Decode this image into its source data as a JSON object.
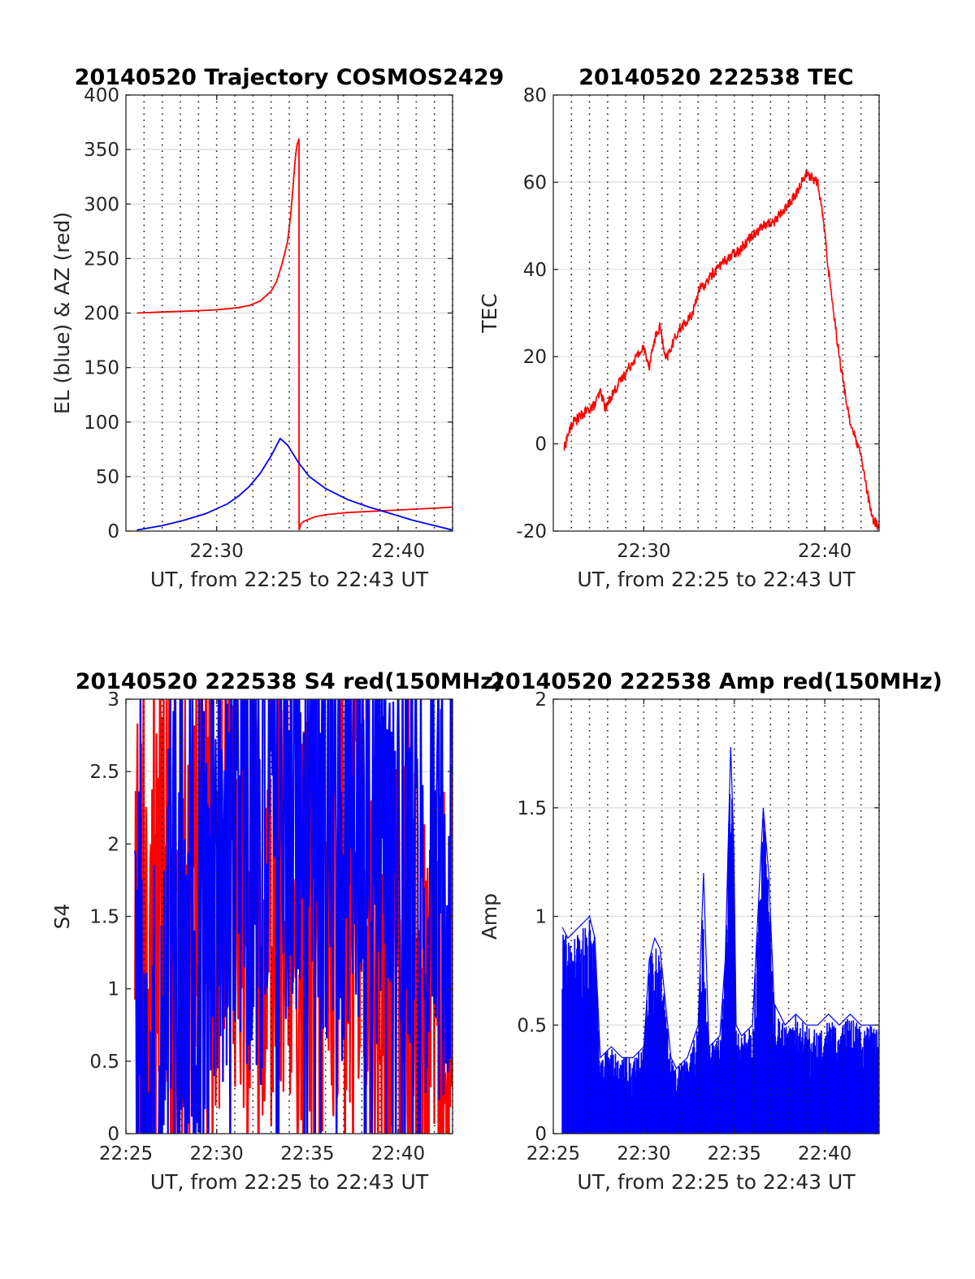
{
  "chart_data": [
    {
      "id": "p1",
      "type": "line",
      "title": "20140520 Trajectory COSMOS2429",
      "xlabel": "UT, from 22:25 to 22:43 UT",
      "ylabel": "EL (blue) & AZ (red)",
      "xlim": [
        22.41667,
        22.71667
      ],
      "ylim": [
        0,
        400
      ],
      "yticks": [
        0,
        50,
        100,
        150,
        200,
        250,
        300,
        350,
        400
      ],
      "xticks": [
        {
          "value": 22.5,
          "label": "22:30"
        },
        {
          "value": 22.66667,
          "label": "22:40"
        }
      ],
      "grid_x_step_minutes": 1,
      "colors": {
        "az": "#ff0000",
        "el": "#0000ff"
      },
      "series": [
        {
          "key": "az",
          "color": "#ff0000",
          "x": [
            22.42667,
            22.45,
            22.48,
            22.5,
            22.52,
            22.53,
            22.54,
            22.55,
            22.555,
            22.56,
            22.565,
            22.568,
            22.5705,
            22.5725,
            22.574,
            22.575,
            22.5753,
            22.5756,
            22.5756,
            22.5757,
            22.5758,
            22.5765,
            22.5775,
            22.58,
            22.585,
            22.59,
            22.6,
            22.61,
            22.62,
            22.64,
            22.66,
            22.68,
            22.7,
            22.71667
          ],
          "y": [
            200,
            201,
            202,
            203,
            205,
            207,
            211,
            220,
            229,
            245,
            265,
            290,
            320,
            345,
            355,
            358,
            359,
            360,
            50,
            2,
            1,
            4,
            7,
            9,
            11,
            13,
            15,
            16,
            17,
            18,
            19,
            20,
            21,
            22
          ]
        },
        {
          "key": "el",
          "color": "#0000ff",
          "x": [
            22.42667,
            22.45,
            22.47,
            22.49,
            22.51,
            22.52,
            22.53,
            22.54,
            22.55,
            22.5583,
            22.565,
            22.575,
            22.585,
            22.6,
            22.62,
            22.64,
            22.66,
            22.68,
            22.7,
            22.71667
          ],
          "y": [
            1,
            5,
            10,
            16,
            25,
            32,
            41,
            53,
            69,
            85,
            79,
            63,
            50,
            39,
            29,
            22,
            16,
            10,
            5,
            1
          ]
        }
      ]
    },
    {
      "id": "p2",
      "type": "line",
      "title": "20140520 222538 TEC",
      "xlabel": "UT, from 22:25 to 22:43 UT",
      "ylabel": "TEC",
      "xlim": [
        22.41667,
        22.71667
      ],
      "ylim": [
        -20,
        80
      ],
      "yticks": [
        -20,
        0,
        20,
        40,
        60,
        80
      ],
      "xticks": [
        {
          "value": 22.5,
          "label": "22:30"
        },
        {
          "value": 22.66667,
          "label": "22:40"
        }
      ],
      "grid_x_step_minutes": 1,
      "noise": 1.2,
      "series": [
        {
          "key": "tec",
          "color": "#ff0000",
          "x": [
            22.42667,
            22.43,
            22.435,
            22.44,
            22.45,
            22.455,
            22.46,
            22.465,
            22.47,
            22.48,
            22.49,
            22.5,
            22.505,
            22.51,
            22.515,
            22.52,
            22.525,
            22.53,
            22.535,
            22.54,
            22.545,
            22.55,
            22.555,
            22.56,
            22.57,
            22.58,
            22.59,
            22.6,
            22.61,
            22.62,
            22.63,
            22.64,
            22.645,
            22.65,
            22.655,
            22.66,
            22.665,
            22.67,
            22.675,
            22.68,
            22.685,
            22.69,
            22.695,
            22.7,
            22.705,
            22.71,
            22.71667
          ],
          "y": [
            -1,
            2,
            5,
            6,
            8,
            9,
            12,
            8,
            11,
            15,
            19,
            22,
            18,
            24,
            27,
            19,
            22,
            25,
            27,
            28,
            30,
            35,
            36,
            38,
            41,
            43,
            45,
            48,
            50,
            51,
            54,
            57,
            60,
            62,
            61,
            60,
            52,
            40,
            30,
            20,
            12,
            5,
            1,
            -3,
            -10,
            -17,
            -19
          ]
        }
      ]
    },
    {
      "id": "p3",
      "type": "line",
      "title": "20140520 222538 S4 red(150MHz)",
      "xlabel": "UT, from 22:25 to 22:43 UT",
      "ylabel": "S4",
      "xlim": [
        22.41667,
        22.71667
      ],
      "ylim": [
        0,
        3
      ],
      "yticks": [
        0,
        0.5,
        1,
        1.5,
        2,
        2.5,
        3
      ],
      "xticks": [
        {
          "value": 22.41667,
          "label": "22:25"
        },
        {
          "value": 22.5,
          "label": "22:30"
        },
        {
          "value": 22.58333,
          "label": "22:35"
        },
        {
          "value": 22.66667,
          "label": "22:40"
        }
      ],
      "grid_x_step_minutes": 1,
      "noise": 1.6,
      "series": [
        {
          "key": "s4_red",
          "color": "#ff0000",
          "x": [
            22.425,
            22.44,
            22.45,
            22.47,
            22.49,
            22.51,
            22.53,
            22.55,
            22.565,
            22.58,
            22.6,
            22.61,
            22.62,
            22.63,
            22.64,
            22.645,
            22.65,
            22.66,
            22.67,
            22.68,
            22.69,
            22.7,
            22.71,
            22.71667
          ],
          "y": [
            1.5,
            1.5,
            1.5,
            1.6,
            1.6,
            1.6,
            1.5,
            1.5,
            1.5,
            1.5,
            1.6,
            1.6,
            1.6,
            1.5,
            1.2,
            1.1,
            1.0,
            0.9,
            1.0,
            1.1,
            0.9,
            1.0,
            1.1,
            1.0
          ]
        },
        {
          "key": "s4_blue",
          "color": "#0000ff",
          "x": [
            22.425,
            22.43,
            22.435,
            22.44,
            22.445,
            22.45,
            22.455,
            22.46,
            22.465,
            22.47,
            22.48,
            22.49,
            22.5,
            22.51,
            22.52,
            22.53,
            22.54,
            22.55,
            22.56,
            22.57,
            22.58,
            22.59,
            22.6,
            22.61,
            22.62,
            22.63,
            22.64,
            22.65,
            22.66,
            22.67,
            22.68,
            22.69,
            22.7,
            22.71,
            22.71667
          ],
          "y": [
            0.8,
            0.75,
            0.85,
            0.7,
            0.8,
            1.2,
            1.5,
            1.8,
            1.4,
            1.2,
            1.5,
            1.6,
            1.8,
            1.9,
            2.2,
            2.0,
            1.9,
            2.0,
            2.4,
            2.2,
            1.9,
            2.1,
            2.2,
            2.0,
            2.1,
            2.3,
            2.2,
            2.0,
            1.9,
            1.8,
            2.0,
            1.9,
            1.7,
            1.8,
            1.9
          ]
        }
      ]
    },
    {
      "id": "p4",
      "type": "line",
      "title": "20140520 222538 Amp red(150MHz)",
      "xlabel": "UT, from 22:25 to 22:43 UT",
      "ylabel": "Amp",
      "xlim": [
        22.41667,
        22.71667
      ],
      "ylim": [
        0,
        2
      ],
      "yticks": [
        0,
        0.5,
        1,
        1.5,
        2
      ],
      "xticks": [
        {
          "value": 22.41667,
          "label": "22:25"
        },
        {
          "value": 22.5,
          "label": "22:30"
        },
        {
          "value": 22.58333,
          "label": "22:35"
        },
        {
          "value": 22.66667,
          "label": "22:40"
        }
      ],
      "grid_x_step_minutes": 1,
      "series": [
        {
          "key": "amp_envelope",
          "color": "#0000ff",
          "x": [
            22.425,
            22.43,
            22.44,
            22.45,
            22.455,
            22.46,
            22.47,
            22.48,
            22.49,
            22.5,
            22.505,
            22.51,
            22.515,
            22.52,
            22.525,
            22.53,
            22.54,
            22.55,
            22.555,
            22.56,
            22.57,
            22.575,
            22.58,
            22.583,
            22.585,
            22.59,
            22.6,
            22.605,
            22.61,
            22.615,
            22.62,
            22.63,
            22.64,
            22.65,
            22.66,
            22.67,
            22.68,
            22.69,
            22.7,
            22.71,
            22.71667
          ],
          "y": [
            0.95,
            0.9,
            0.95,
            1.0,
            0.9,
            0.35,
            0.4,
            0.35,
            0.35,
            0.4,
            0.8,
            0.9,
            0.85,
            0.6,
            0.35,
            0.3,
            0.35,
            0.5,
            1.2,
            0.4,
            0.45,
            0.8,
            1.78,
            1.3,
            0.5,
            0.45,
            0.5,
            1.0,
            1.5,
            1.2,
            0.6,
            0.5,
            0.55,
            0.5,
            0.5,
            0.55,
            0.5,
            0.55,
            0.5,
            0.5,
            0.5
          ]
        }
      ]
    }
  ]
}
